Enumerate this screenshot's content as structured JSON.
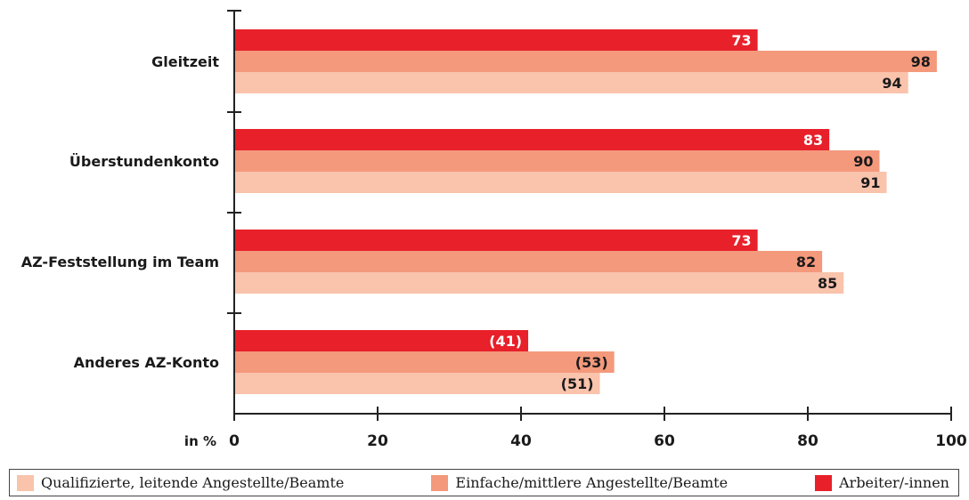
{
  "chart_data": {
    "type": "bar",
    "orientation": "horizontal",
    "categories": [
      "Gleitzeit",
      "Überstundenkonto",
      "AZ-Feststellung im Team",
      "Anderes AZ-Konto"
    ],
    "series": [
      {
        "name": "Arbeiter/-innen",
        "color": "#e8202a",
        "values": [
          73,
          83,
          73,
          41
        ],
        "labels": [
          "73",
          "83",
          "73",
          "(41)"
        ],
        "label_color": "#ffffff"
      },
      {
        "name": "Einfache/mittlere Angestellte/Beamte",
        "color": "#f4997c",
        "values": [
          98,
          90,
          82,
          53
        ],
        "labels": [
          "98",
          "90",
          "82",
          "(53)"
        ],
        "label_color": "#1a1a1a"
      },
      {
        "name": "Qualifizierte, leitende Angestellte/Beamte",
        "color": "#f9c3ac",
        "values": [
          94,
          91,
          85,
          51
        ],
        "labels": [
          "94",
          "91",
          "85",
          "(51)"
        ],
        "label_color": "#1a1a1a"
      }
    ],
    "x_ticks": [
      "0",
      "20",
      "40",
      "60",
      "80",
      "100"
    ],
    "xlim": [
      0,
      100
    ],
    "x_unit_label": "in %",
    "title": "",
    "grid": false,
    "legend_position": "bottom",
    "legend_order": [
      "Qualifizierte, leitende Angestellte/Beamte",
      "Einfache/mittlere Angestellte/Beamte",
      "Arbeiter/-innen"
    ]
  }
}
